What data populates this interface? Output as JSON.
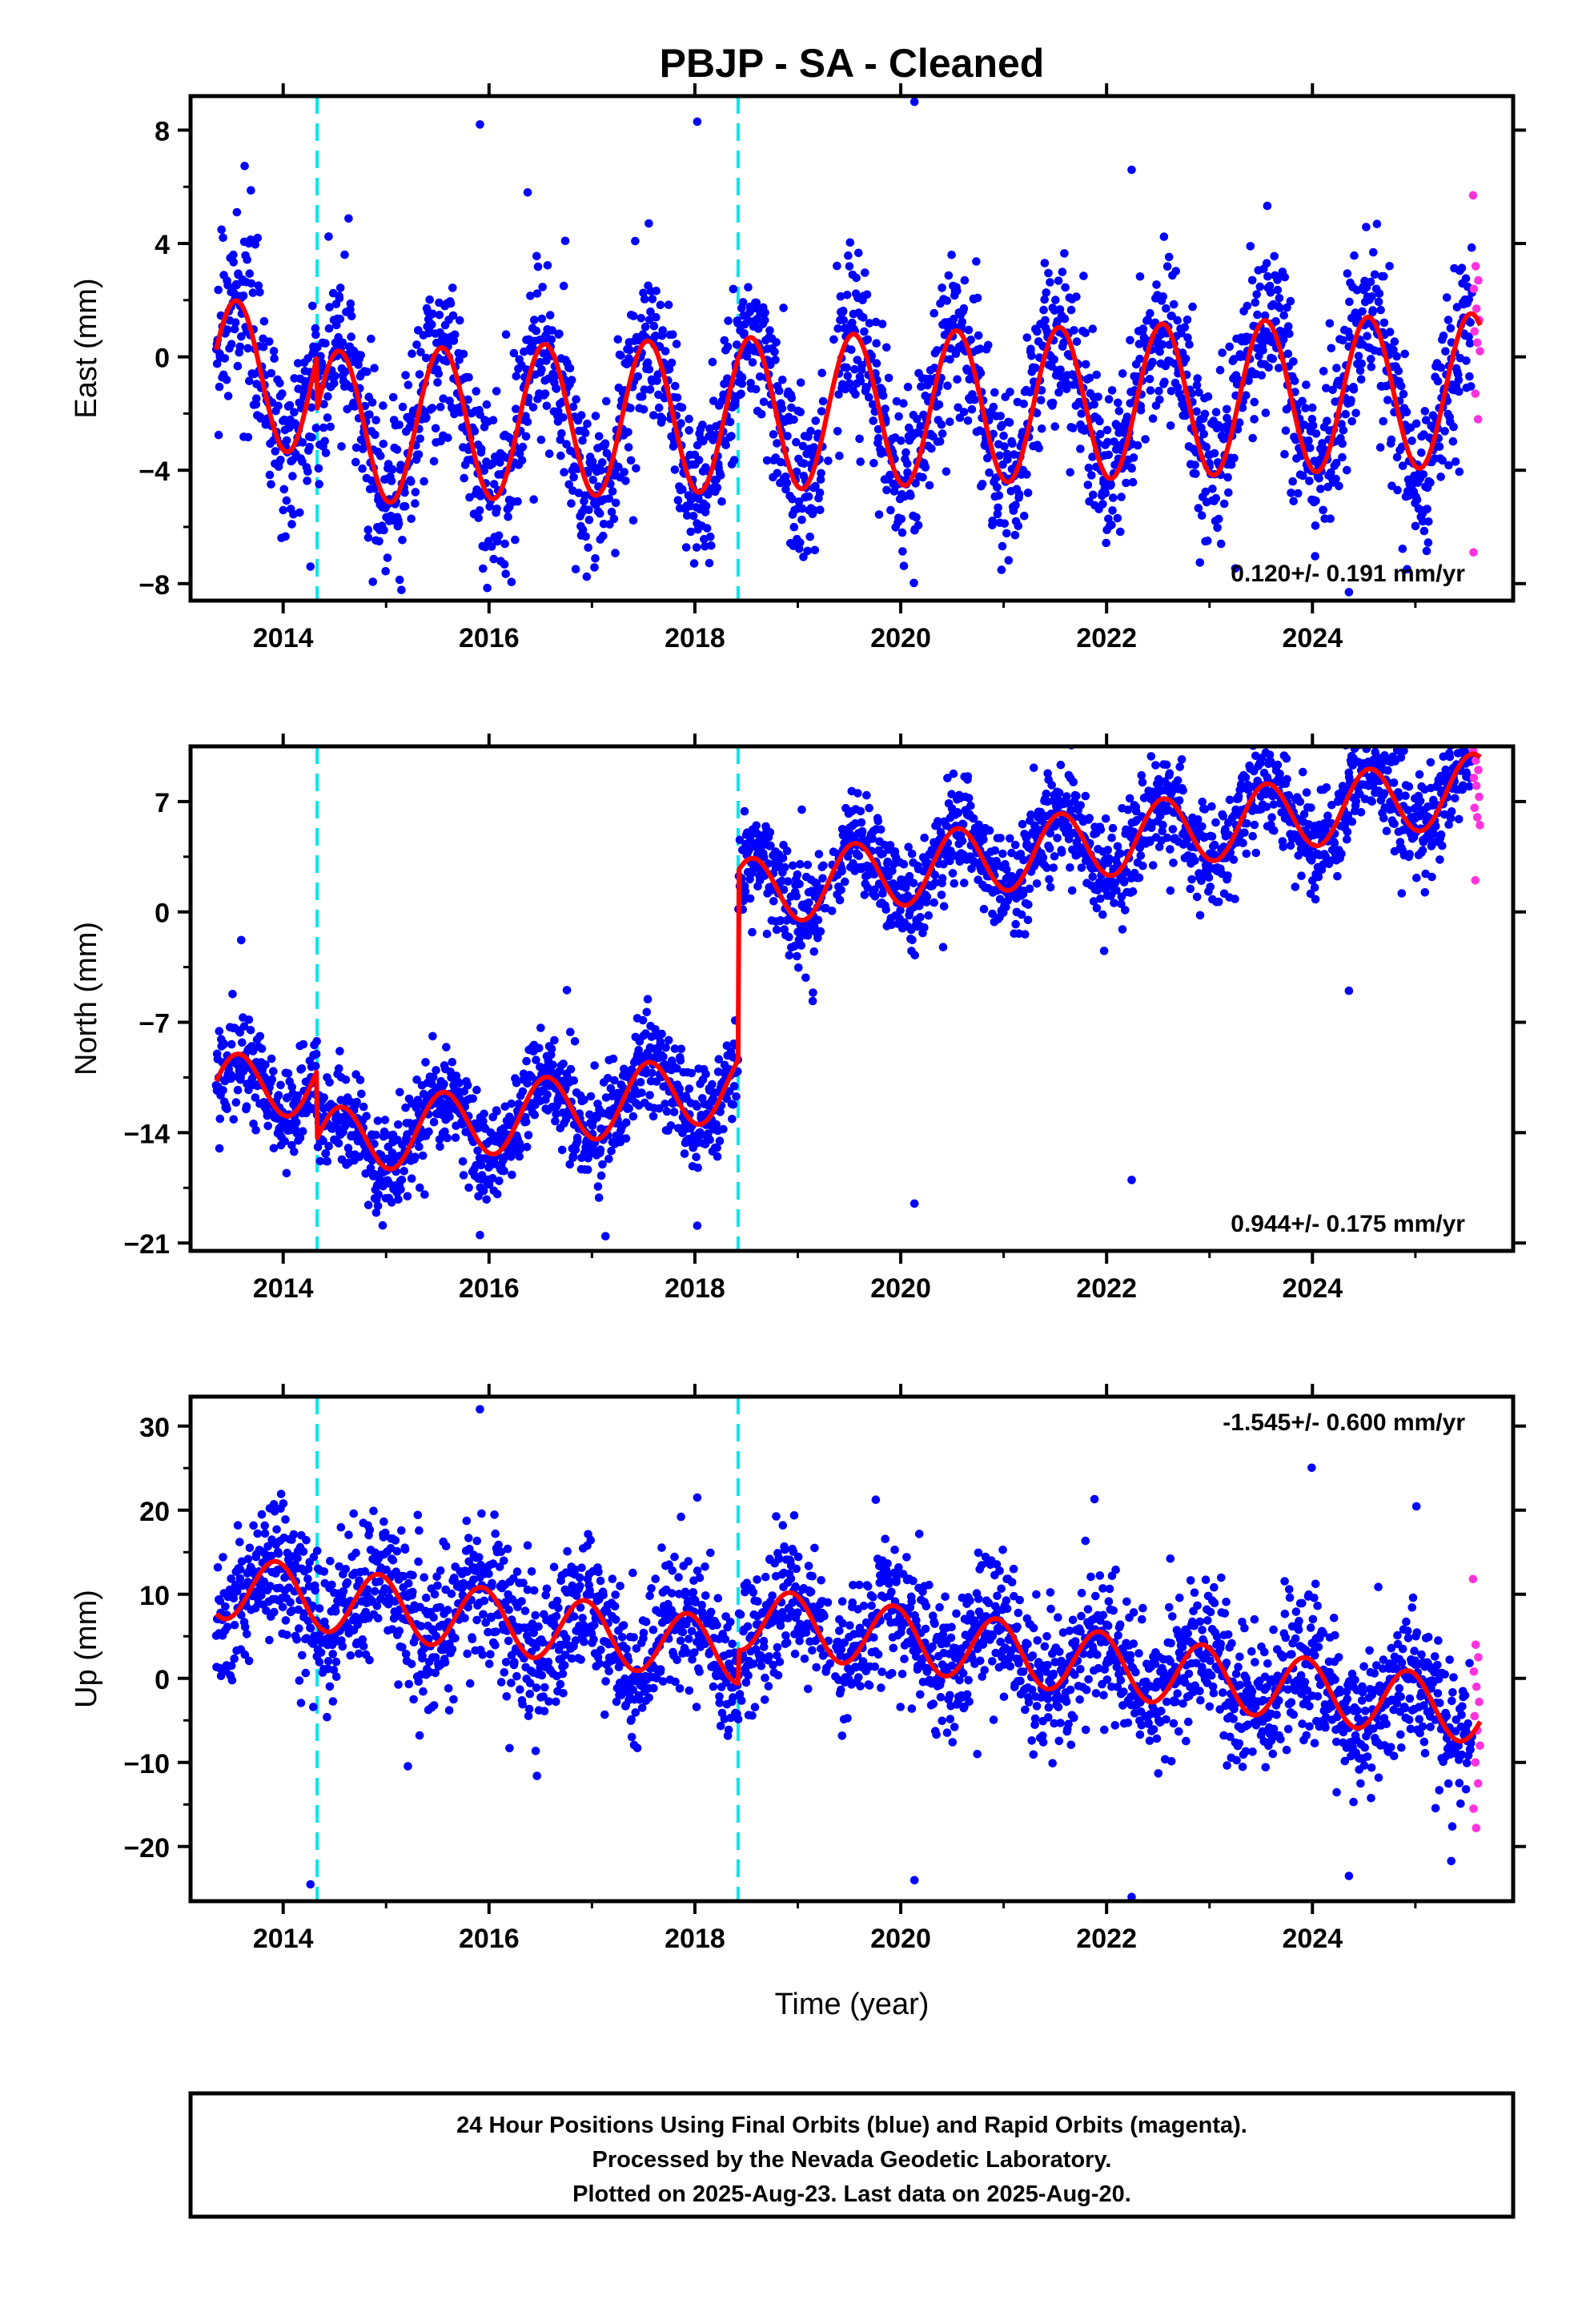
{
  "title": "PBJP  - SA - Cleaned",
  "colors": {
    "final_orbits": "#0000ff",
    "rapid_orbits": "#ff33dd",
    "model_fit": "#ff0000",
    "event_lines": "#00e5ee",
    "frame": "#000000"
  },
  "chart_data": [
    {
      "type": "scatter",
      "name": "East",
      "ylabel": "East (mm)",
      "xlabel": "",
      "xlim": [
        2013.1,
        2025.95
      ],
      "ylim": [
        -8.6,
        9.2
      ],
      "yticks": [
        -8,
        -4,
        0,
        4,
        8
      ],
      "xticks": [
        2014,
        2016,
        2018,
        2020,
        2022,
        2024
      ],
      "grid": false,
      "rate_label": "0.120+/- 0.191 mm/yr",
      "rate_label_position": "bottom-right",
      "event_lines_x": [
        2014.33,
        2018.42
      ],
      "model": {
        "annual_amplitude": 2.7,
        "annual_peak_year_fraction": 0.54,
        "steps": [
          {
            "x": 2014.33,
            "dy": -1.9
          }
        ],
        "rate": 0.12,
        "reference_year": 2019.5,
        "offset": 0.0,
        "scatter_sigma": 1.5
      },
      "series": [
        {
          "name": "Final Orbits",
          "x_range": [
            2013.35,
            2025.55
          ],
          "outlier_y": [
            8.2,
            8.3,
            9.0,
            6.6,
            -8.3,
            -7.4,
            5.8
          ]
        },
        {
          "name": "Rapid Orbits",
          "x_range": [
            2025.56,
            2025.63
          ],
          "y": [
            5.7,
            3.2,
            2.7,
            2.4,
            1.7,
            1.3,
            0.9,
            0.5,
            0.2,
            -1.3,
            -2.2,
            -6.9
          ]
        }
      ]
    },
    {
      "type": "scatter",
      "name": "North",
      "ylabel": "North (mm)",
      "xlabel": "",
      "xlim": [
        2013.1,
        2025.95
      ],
      "ylim": [
        -21.5,
        10.5
      ],
      "yticks": [
        -21,
        -14,
        -7,
        0,
        7
      ],
      "xticks": [
        2014,
        2016,
        2018,
        2020,
        2022,
        2024
      ],
      "grid": false,
      "rate_label": "0.944+/- 0.175 mm/yr",
      "rate_label_position": "bottom-right",
      "event_lines_x": [
        2014.33,
        2018.42
      ],
      "model": {
        "annual_amplitude": 2.2,
        "annual_peak_year_fraction": 0.55,
        "steps": [
          {
            "x": 2014.33,
            "dy": -4.3
          },
          {
            "x": 2018.42,
            "dy": 12.0
          }
        ],
        "rate": 0.944,
        "reference_year": 2019.5,
        "offset": -5.6,
        "scatter_sigma": 1.6
      },
      "series": [
        {
          "name": "Final Orbits",
          "x_range": [
            2013.35,
            2025.55
          ],
          "outlier_y": [
            -20.5,
            -19.9,
            -18.5,
            -17.0,
            -5.0
          ]
        },
        {
          "name": "Rapid Orbits",
          "x_range": [
            2025.56,
            2025.63
          ],
          "y": [
            10.2,
            9.6,
            9.0,
            8.5,
            8.0,
            7.3,
            6.6,
            6.0,
            5.5,
            2.0
          ]
        }
      ]
    },
    {
      "type": "scatter",
      "name": "Up",
      "ylabel": "Up (mm)",
      "xlabel": "Time (year)",
      "xlim": [
        2013.1,
        2025.95
      ],
      "ylim": [
        -26.5,
        33.5
      ],
      "yticks": [
        -20,
        -10,
        0,
        10,
        20,
        30
      ],
      "xticks": [
        2014,
        2016,
        2018,
        2020,
        2022,
        2024
      ],
      "grid": false,
      "rate_label": "-1.545+/- 0.600 mm/yr",
      "rate_label_position": "top-right",
      "event_lines_x": [
        2014.33,
        2018.42
      ],
      "model": {
        "annual_amplitude": 3.8,
        "annual_peak_year_fraction": 0.93,
        "steps": [
          {
            "x": 2018.42,
            "dy": 4.0
          }
        ],
        "rate": -1.545,
        "reference_year": 2019.5,
        "offset": 1.5,
        "scatter_sigma": 4.2
      },
      "series": [
        {
          "name": "Final Orbits",
          "x_range": [
            2013.35,
            2025.55
          ],
          "outlier_y": [
            32.0,
            21.5,
            -24.0,
            -26.0,
            -23.5,
            -24.5,
            15.8
          ]
        },
        {
          "name": "Rapid Orbits",
          "x_range": [
            2025.56,
            2025.63
          ],
          "y": [
            11.8,
            4.0,
            2.5,
            0.8,
            -1.0,
            -2.8,
            -4.5,
            -6.2,
            -8.0,
            -10.0,
            -12.5,
            -15.5,
            -17.8
          ]
        }
      ]
    }
  ],
  "footer": {
    "line1": "24 Hour Positions Using Final Orbits (blue) and Rapid Orbits (magenta).",
    "line2": "Processed by the Nevada Geodetic Laboratory.",
    "line3": "Plotted on 2025-Aug-23. Last data on 2025-Aug-20."
  }
}
